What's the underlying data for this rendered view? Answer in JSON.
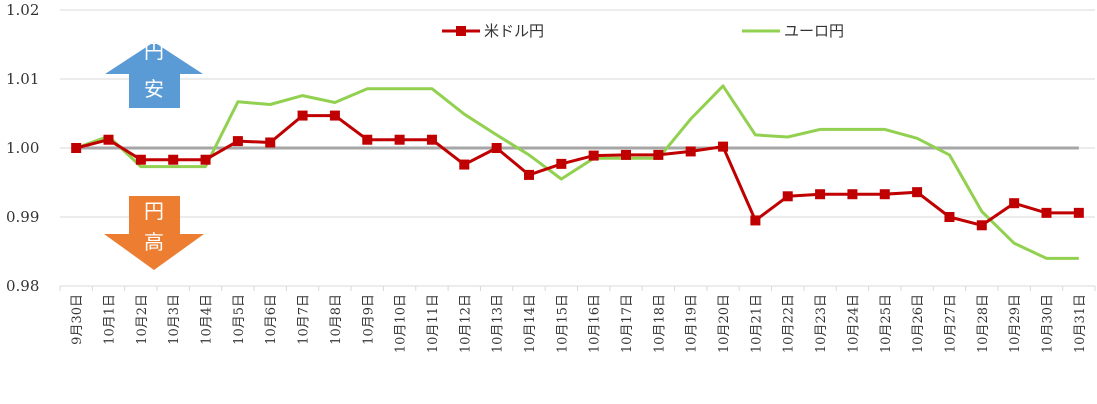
{
  "chart_data": {
    "type": "line",
    "categories": [
      "9月30日",
      "10月1日",
      "10月2日",
      "10月3日",
      "10月4日",
      "10月5日",
      "10月6日",
      "10月7日",
      "10月8日",
      "10月9日",
      "10月10日",
      "10月11日",
      "10月12日",
      "10月13日",
      "10月14日",
      "10月15日",
      "10月16日",
      "10月17日",
      "10月18日",
      "10月19日",
      "10月20日",
      "10月21日",
      "10月22日",
      "10月23日",
      "10月24日",
      "10月25日",
      "10月26日",
      "10月27日",
      "10月28日",
      "10月29日",
      "10月30日",
      "10月31日"
    ],
    "series": [
      {
        "name": "米ドル円",
        "color": "#C00000",
        "marker": "square",
        "values": [
          1.0,
          1.0012,
          0.9983,
          0.9983,
          0.9983,
          1.001,
          1.0008,
          1.0047,
          1.0047,
          1.0012,
          1.0012,
          1.0012,
          0.9976,
          1.0,
          0.9961,
          0.9977,
          0.9989,
          0.999,
          0.999,
          0.9995,
          1.0002,
          0.9895,
          0.993,
          0.9933,
          0.9933,
          0.9933,
          0.9936,
          0.99,
          0.9888,
          0.992,
          0.9906,
          0.9906
        ]
      },
      {
        "name": "ユーロ円",
        "color": "#92D050",
        "marker": "none",
        "values": [
          1.0,
          1.0017,
          0.9973,
          0.9973,
          0.9973,
          1.0067,
          1.0063,
          1.0076,
          1.0066,
          1.0086,
          1.0086,
          1.0086,
          1.0049,
          1.0019,
          0.999,
          0.9955,
          0.9985,
          0.9985,
          0.9985,
          1.0042,
          1.009,
          1.0019,
          1.0016,
          1.0027,
          1.0027,
          1.0027,
          1.0014,
          0.999,
          0.9908,
          0.9862,
          0.984,
          0.984
        ]
      }
    ],
    "reference_line": {
      "value": 1.0,
      "color": "#A6A6A6"
    },
    "ylim": [
      0.98,
      1.02
    ],
    "yticks": [
      "0.98",
      "0.99",
      "1.00",
      "1.01",
      "1.02"
    ],
    "grid": true,
    "legend_position": "top",
    "annotations": {
      "up_arrow": {
        "chars": [
          "円",
          "安"
        ],
        "color": "#5B9BD5"
      },
      "down_arrow": {
        "chars": [
          "円",
          "高"
        ],
        "color": "#ED7D31"
      }
    }
  }
}
